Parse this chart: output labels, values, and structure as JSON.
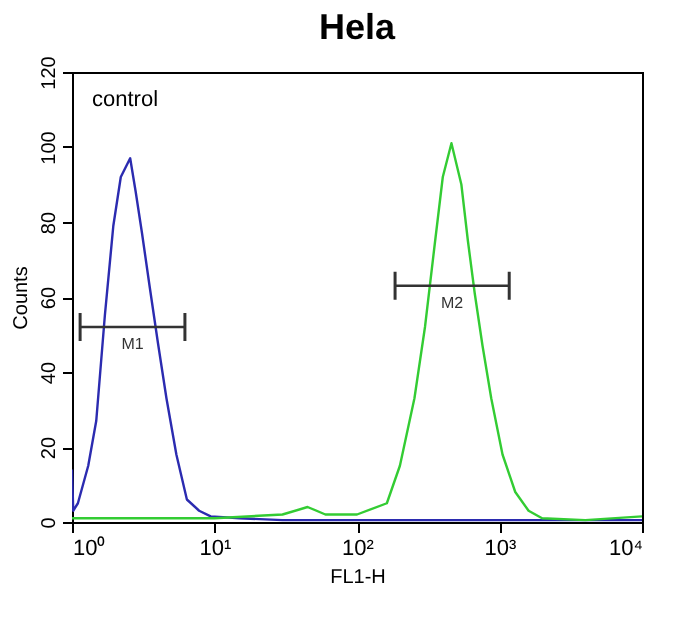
{
  "chart_data": {
    "type": "line",
    "title": "Hela",
    "xlabel": "FL1-H",
    "ylabel": "Counts",
    "log": "x",
    "annotations": [
      "control"
    ],
    "xlim": [
      1,
      10000
    ],
    "ylim": [
      0,
      120
    ],
    "xticks": [
      {
        "value": 1,
        "label": "10⁰"
      },
      {
        "value": 10,
        "label": "10¹"
      },
      {
        "value": 100,
        "label": "10²"
      },
      {
        "value": 1000,
        "label": "10³"
      },
      {
        "value": 10000,
        "label": "10⁴"
      }
    ],
    "yticks": [
      0,
      20,
      40,
      60,
      80,
      100,
      120
    ],
    "grid": false,
    "legend": false,
    "marker": "none",
    "line_style": "solid",
    "series": [
      {
        "color": "#2b2bb0",
        "x": [
          1.0,
          1.02,
          1.1,
          1.3,
          1.48,
          1.7,
          1.95,
          2.2,
          2.56,
          2.8,
          3.1,
          3.5,
          4.0,
          4.6,
          5.4,
          6.4,
          7.8,
          9.4,
          15,
          30,
          100,
          1000,
          10000
        ],
        "values": [
          14,
          3,
          5,
          15,
          27,
          55,
          79,
          92,
          97,
          88,
          77,
          63,
          48,
          33,
          18,
          6,
          3,
          1.5,
          1,
          0.5,
          0.5,
          0.5,
          0.5
        ]
      },
      {
        "color": "#33cc33",
        "x": [
          1.0,
          3,
          10,
          30,
          45,
          60,
          100,
          162,
          200,
          253,
          300,
          351,
          400,
          460,
          540,
          600,
          670,
          760,
          875,
          1050,
          1290,
          1600,
          1990,
          4000,
          10000
        ],
        "values": [
          1,
          1,
          1,
          2,
          4,
          2,
          2,
          5,
          15,
          33,
          52,
          74,
          92,
          101,
          90,
          75,
          61,
          47,
          33,
          18,
          8,
          3,
          1,
          0.5,
          1.5
        ]
      },
      {
        "name": "M1",
        "color": "#333333",
        "x": [
          1.14,
          6.2
        ],
        "values": [
          52,
          52
        ]
      },
      {
        "name": "M2",
        "color": "#333333",
        "x": [
          185,
          1170
        ],
        "values": [
          63,
          63
        ]
      }
    ]
  }
}
